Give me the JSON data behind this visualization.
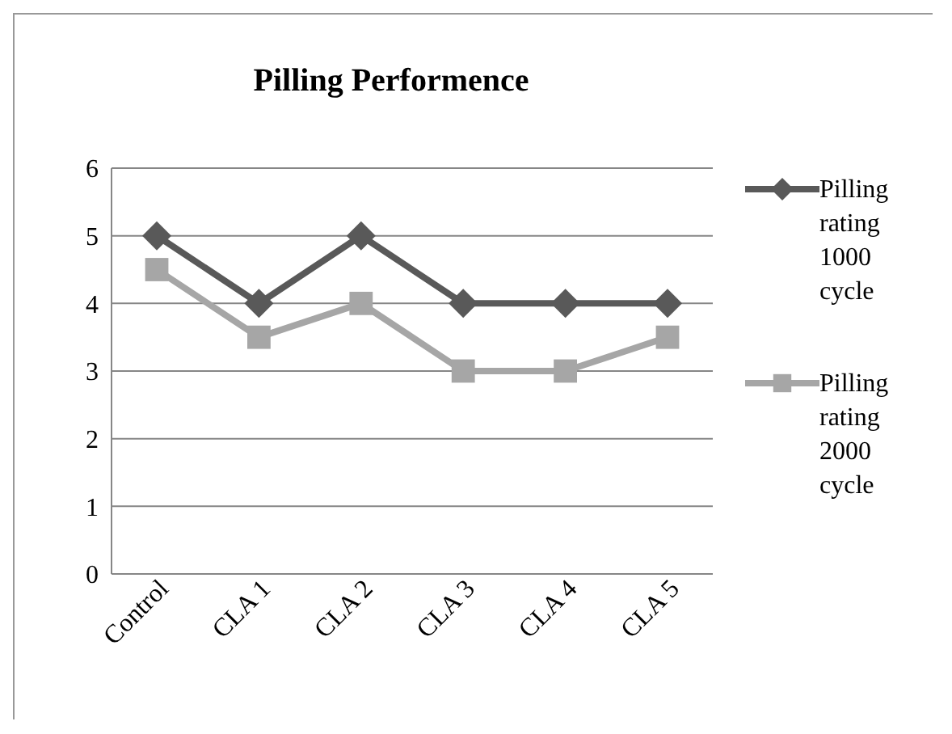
{
  "chart_data": {
    "type": "line",
    "title": "Pilling Performence",
    "categories": [
      "Control",
      "CLA 1",
      "CLA 2",
      "CLA 3",
      "CLA 4",
      "CLA 5"
    ],
    "series": [
      {
        "name": "Pilling rating 1000 cycle",
        "color": "#595959",
        "marker": "diamond",
        "values": [
          5,
          4,
          5,
          4,
          4,
          4
        ]
      },
      {
        "name": "Pilling rating 2000 cycle",
        "color": "#a6a6a6",
        "marker": "square",
        "values": [
          4.5,
          3.5,
          4,
          3,
          3,
          3.5
        ]
      }
    ],
    "ylim": [
      0,
      6
    ],
    "yticks": [
      0,
      1,
      2,
      3,
      4,
      5,
      6
    ],
    "grid": "y",
    "legend": "right"
  }
}
